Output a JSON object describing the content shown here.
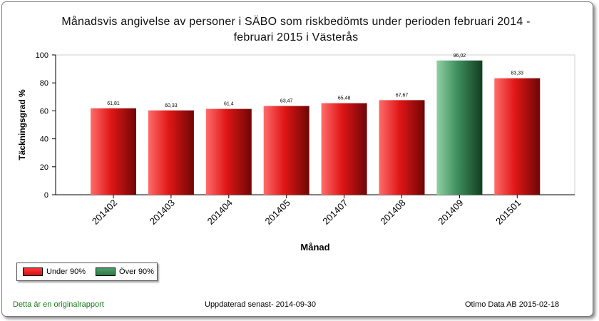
{
  "chart_data": {
    "type": "bar",
    "title_line1": "Månadsvis angivelse av personer i SÄBO som riskbedömts under perioden  februari 2014 -",
    "title_line2": "februari 2015 i  Västerås",
    "xlabel": "Månad",
    "ylabel": "Täckningsgrad %",
    "ylim": [
      0,
      100
    ],
    "yticks": [
      0,
      20,
      40,
      60,
      80,
      100
    ],
    "categories": [
      "201402",
      "201403",
      "201404",
      "201405",
      "201407",
      "201408",
      "201409",
      "201501"
    ],
    "values": [
      61.81,
      60.33,
      61.4,
      63.47,
      65.48,
      67.67,
      96.02,
      83.33
    ],
    "value_labels": [
      "61,81",
      "60,33",
      "61,4",
      "63,47",
      "65,48",
      "67,67",
      "96,02",
      "83,33"
    ],
    "series_by_bar": [
      "Under 90%",
      "Under 90%",
      "Under 90%",
      "Under 90%",
      "Under 90%",
      "Under 90%",
      "Över 90%",
      "Under 90%"
    ],
    "legend": [
      {
        "name": "Under 90%",
        "color": "#ff2020"
      },
      {
        "name": "Över 90%",
        "color": "#2e8b57"
      }
    ],
    "legend_position": "bottom-left",
    "grid": false
  },
  "colors": {
    "under_light": "#ff6b6b",
    "under_mid": "#e01616",
    "under_dark": "#6e0606",
    "over_light": "#8fd0a4",
    "over_mid": "#3f8f5d",
    "over_dark": "#123d22"
  },
  "footer": {
    "left": "Detta är en originalrapport",
    "center": "Uppdaterad senast- 2014-09-30",
    "right": "Otimo Data AB 2015-02-18"
  }
}
